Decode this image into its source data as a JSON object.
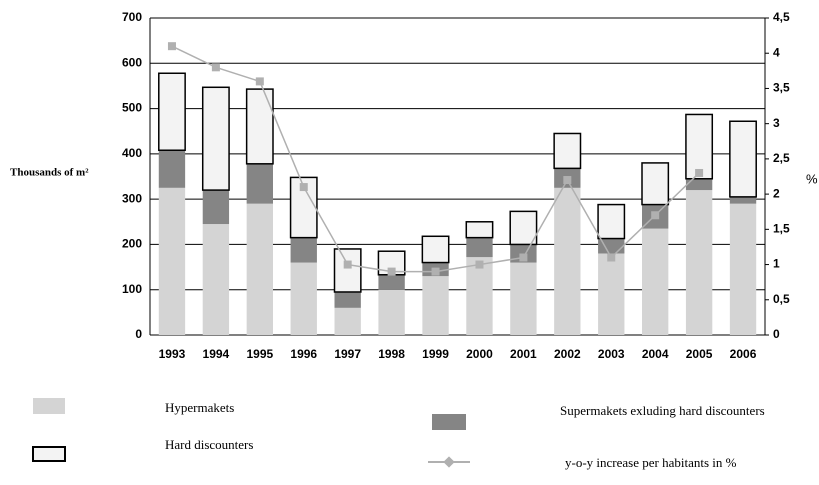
{
  "chart_data": {
    "type": "bar",
    "ylabel": "Thousands of m²",
    "y2label": "%",
    "categories": [
      "1993",
      "1994",
      "1995",
      "1996",
      "1997",
      "1998",
      "1999",
      "2000",
      "2001",
      "2002",
      "2003",
      "2004",
      "2005",
      "2006"
    ],
    "series": [
      {
        "name": "Hypermakets",
        "color": "#d4d4d4",
        "values": [
          325,
          245,
          290,
          160,
          60,
          100,
          130,
          172,
          160,
          325,
          180,
          235,
          320,
          290
        ]
      },
      {
        "name": "Supermakets exluding hard discounters",
        "color": "#858585",
        "values": [
          83,
          75,
          88,
          55,
          35,
          33,
          30,
          43,
          40,
          43,
          33,
          53,
          25,
          15
        ]
      },
      {
        "name": "Hard discounters",
        "color": "#f3f3f3",
        "values": [
          170,
          227,
          165,
          133,
          95,
          52,
          58,
          35,
          73,
          77,
          75,
          92,
          142,
          167
        ]
      },
      {
        "name": "y-o-y increase per habitants in %",
        "type": "line",
        "axis": "y2",
        "color": "#b0b0b0",
        "values": [
          4.1,
          3.8,
          3.6,
          2.1,
          1.0,
          0.9,
          0.9,
          1.0,
          1.1,
          2.2,
          1.1,
          1.7,
          2.3,
          null
        ]
      }
    ],
    "ylim": [
      0,
      700
    ],
    "yticks": [
      0,
      100,
      200,
      300,
      400,
      500,
      600,
      700
    ],
    "y2lim": [
      0,
      4.5
    ],
    "y2ticks": [
      0,
      {
        "value": 0.5,
        "label": "0,5"
      },
      1,
      {
        "value": 1.5,
        "label": "1,5"
      },
      2,
      {
        "value": 2.5,
        "label": "2,5"
      },
      3,
      {
        "value": 3.5,
        "label": "3,5"
      },
      4,
      {
        "value": 4.5,
        "label": "4,5"
      }
    ],
    "grid": true
  }
}
